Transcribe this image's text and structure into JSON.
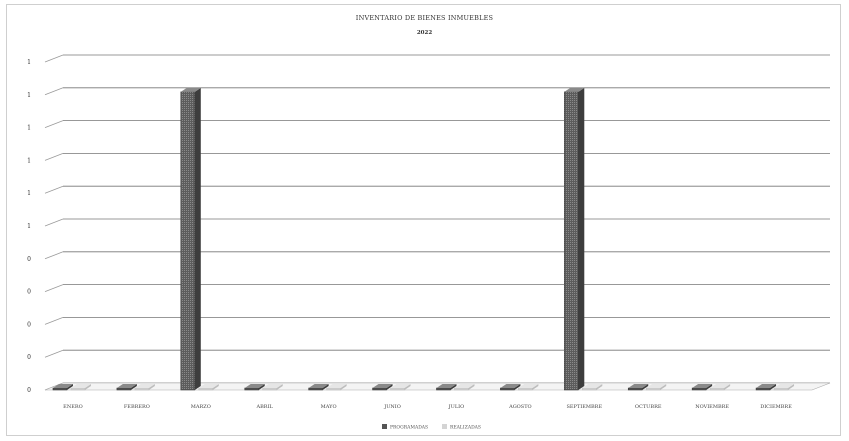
{
  "chart_data": {
    "type": "bar",
    "title": "INVENTARIO DE BIENES INMUEBLES",
    "subtitle": "2022",
    "categories": [
      "ENERO",
      "FEBRERO",
      "MARZO",
      "ABRIL",
      "MAYO",
      "JUNIO",
      "JULIO",
      "AGOSTO",
      "SEPTIEMBRE",
      "OCTUBRE",
      "NOVIEMBRE",
      "DICIEMBRE"
    ],
    "series": [
      {
        "name": "PROGRAMADAS",
        "values": [
          0,
          0,
          1,
          0,
          0,
          0,
          0,
          0,
          1,
          0,
          0,
          0
        ],
        "color": "#555555"
      },
      {
        "name": "REALIZADAS",
        "values": [
          0,
          0,
          0,
          0,
          0,
          0,
          0,
          0,
          0,
          0,
          0,
          0
        ],
        "color": "#d4d4d4"
      }
    ],
    "y_tick_labels": [
      "0",
      "0",
      "0",
      "0",
      "0",
      "1",
      "1",
      "1",
      "1",
      "1",
      "1"
    ],
    "ylim": [
      0,
      1.1
    ],
    "grid": true,
    "legend_position": "bottom"
  }
}
